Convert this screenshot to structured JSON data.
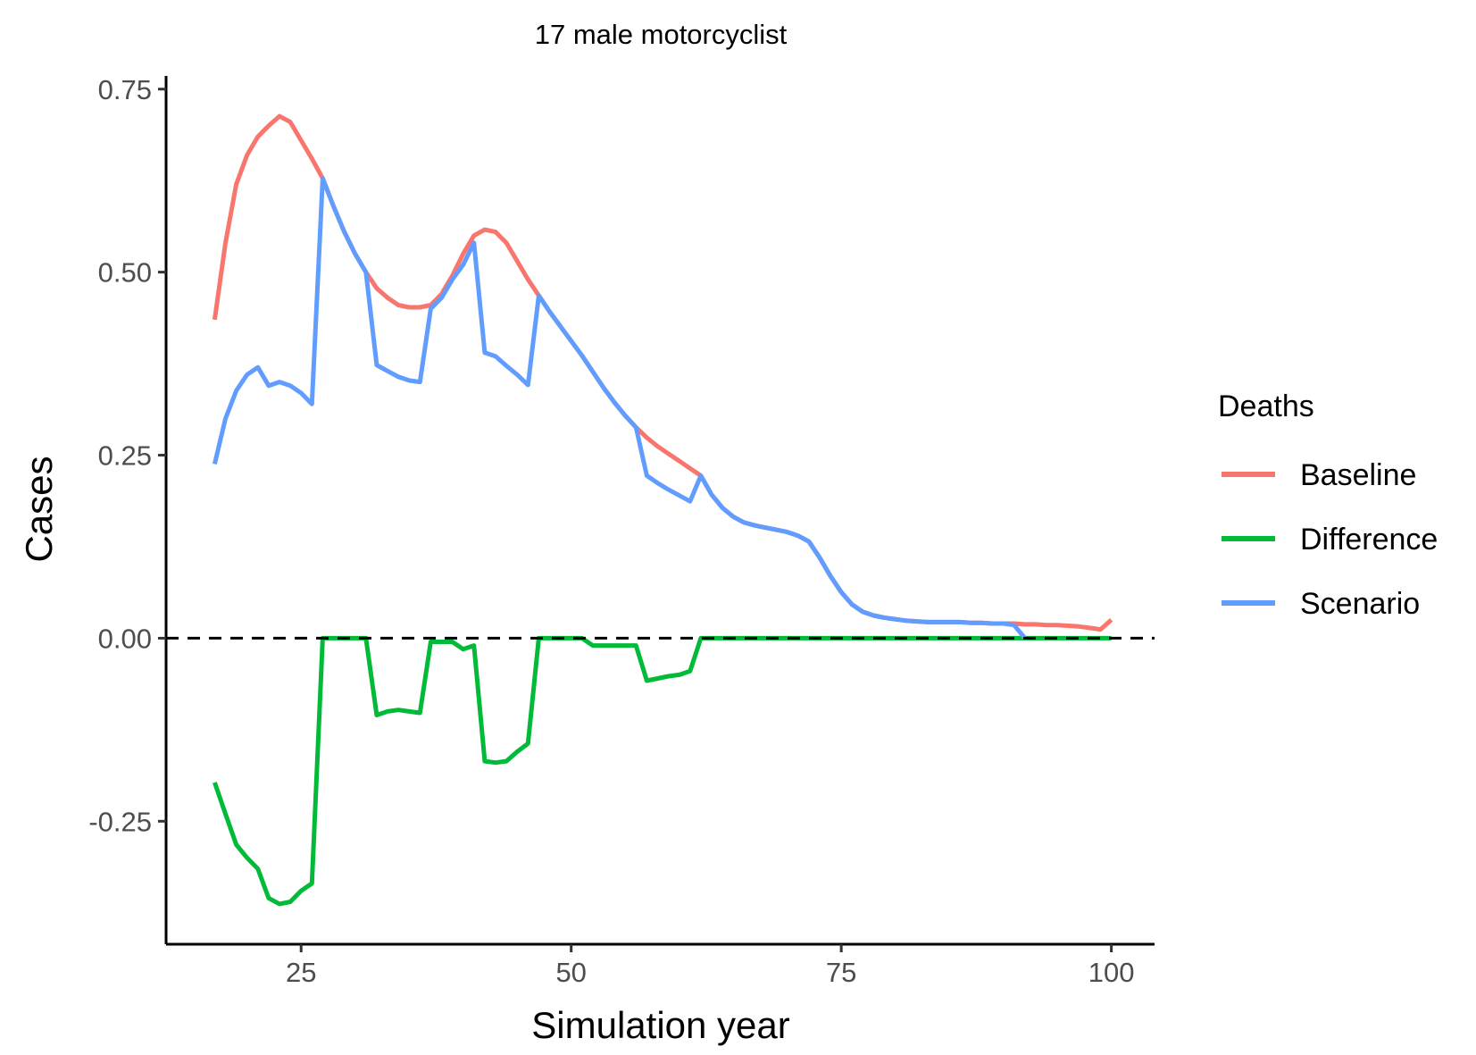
{
  "chart_data": {
    "type": "line",
    "title": "17 male motorcyclist",
    "xlabel": "Simulation year",
    "ylabel": "Cases",
    "xlim": [
      12.5,
      104
    ],
    "ylim": [
      -0.418,
      0.768
    ],
    "x_ticks": [
      25,
      50,
      75,
      100
    ],
    "x_tick_labels": [
      "25",
      "50",
      "75",
      "100"
    ],
    "y_ticks": [
      -0.25,
      0.0,
      0.25,
      0.5,
      0.75
    ],
    "y_tick_labels": [
      "-0.25",
      "0.00",
      "0.25",
      "0.50",
      "0.75"
    ],
    "grid": false,
    "reference_line": {
      "y": 0,
      "style": "dashed",
      "color": "#000000"
    },
    "legend": {
      "title": "Deaths",
      "position": "right"
    },
    "series": [
      {
        "name": "Baseline",
        "color": "#F8766D",
        "x": [
          17,
          18,
          19,
          20,
          21,
          22,
          23,
          24,
          25,
          26,
          27,
          28,
          29,
          30,
          31,
          32,
          33,
          34,
          35,
          36,
          37,
          38,
          39,
          40,
          41,
          42,
          43,
          44,
          45,
          46,
          47,
          48,
          49,
          50,
          51,
          52,
          53,
          54,
          55,
          56,
          57,
          58,
          59,
          60,
          61,
          62,
          63,
          64,
          65,
          66,
          67,
          68,
          69,
          70,
          71,
          72,
          73,
          74,
          75,
          76,
          77,
          78,
          79,
          80,
          81,
          82,
          83,
          84,
          85,
          86,
          87,
          88,
          89,
          90,
          91,
          92,
          93,
          94,
          95,
          96,
          97,
          98,
          99,
          100
        ],
        "values": [
          0.435,
          0.54,
          0.62,
          0.66,
          0.685,
          0.7,
          0.713,
          0.705,
          0.68,
          0.655,
          0.628,
          0.59,
          0.555,
          0.525,
          0.5,
          0.478,
          0.465,
          0.455,
          0.452,
          0.452,
          0.455,
          0.47,
          0.495,
          0.525,
          0.55,
          0.558,
          0.555,
          0.54,
          0.515,
          0.49,
          0.468,
          0.446,
          0.426,
          0.406,
          0.386,
          0.364,
          0.342,
          0.322,
          0.304,
          0.288,
          0.274,
          0.262,
          0.252,
          0.242,
          0.232,
          0.222,
          0.196,
          0.178,
          0.166,
          0.158,
          0.154,
          0.151,
          0.148,
          0.145,
          0.14,
          0.132,
          0.11,
          0.085,
          0.063,
          0.046,
          0.036,
          0.031,
          0.028,
          0.026,
          0.024,
          0.023,
          0.022,
          0.022,
          0.022,
          0.022,
          0.021,
          0.021,
          0.02,
          0.02,
          0.02,
          0.019,
          0.019,
          0.018,
          0.018,
          0.017,
          0.016,
          0.014,
          0.012,
          0.025
        ]
      },
      {
        "name": "Scenario",
        "color": "#619CFF",
        "x": [
          17,
          18,
          19,
          20,
          21,
          22,
          23,
          24,
          25,
          26,
          27,
          28,
          29,
          30,
          31,
          32,
          33,
          34,
          35,
          36,
          37,
          38,
          39,
          40,
          41,
          42,
          43,
          44,
          45,
          46,
          47,
          48,
          49,
          50,
          51,
          52,
          53,
          54,
          55,
          56,
          57,
          58,
          59,
          60,
          61,
          62,
          63,
          64,
          65,
          66,
          67,
          68,
          69,
          70,
          71,
          72,
          73,
          74,
          75,
          76,
          77,
          78,
          79,
          80,
          81,
          82,
          83,
          84,
          85,
          86,
          87,
          88,
          89,
          90,
          91,
          92
        ],
        "values": [
          0.238,
          0.3,
          0.338,
          0.36,
          0.37,
          0.345,
          0.35,
          0.345,
          0.335,
          0.32,
          0.628,
          0.59,
          0.555,
          0.525,
          0.5,
          0.373,
          0.365,
          0.357,
          0.352,
          0.35,
          0.45,
          0.465,
          0.49,
          0.51,
          0.54,
          0.39,
          0.385,
          0.372,
          0.36,
          0.346,
          0.468,
          0.446,
          0.426,
          0.406,
          0.386,
          0.364,
          0.342,
          0.322,
          0.304,
          0.288,
          0.222,
          0.212,
          0.203,
          0.195,
          0.187,
          0.222,
          0.196,
          0.178,
          0.166,
          0.158,
          0.154,
          0.151,
          0.148,
          0.145,
          0.14,
          0.132,
          0.11,
          0.085,
          0.063,
          0.046,
          0.036,
          0.031,
          0.028,
          0.026,
          0.024,
          0.023,
          0.022,
          0.022,
          0.022,
          0.022,
          0.021,
          0.021,
          0.02,
          0.02,
          0.018,
          0.0
        ]
      },
      {
        "name": "Difference",
        "color": "#00BA38",
        "x": [
          17,
          18,
          19,
          20,
          21,
          22,
          23,
          24,
          25,
          26,
          27,
          28,
          29,
          30,
          31,
          32,
          33,
          34,
          35,
          36,
          37,
          38,
          39,
          40,
          41,
          42,
          43,
          44,
          45,
          46,
          47,
          48,
          49,
          50,
          51,
          52,
          53,
          54,
          55,
          56,
          57,
          58,
          59,
          60,
          61,
          62,
          63,
          64,
          65,
          66,
          67,
          68,
          69,
          70,
          71,
          72,
          73,
          74,
          75,
          76,
          77,
          78,
          79,
          80,
          81,
          82,
          83,
          84,
          85,
          86,
          87,
          88,
          89,
          90,
          91,
          92,
          93,
          94,
          95,
          96,
          97,
          98,
          99,
          100
        ],
        "values": [
          -0.197,
          -0.24,
          -0.282,
          -0.3,
          -0.315,
          -0.355,
          -0.363,
          -0.36,
          -0.345,
          -0.335,
          0.0,
          0.0,
          0.0,
          0.0,
          0.0,
          -0.105,
          -0.1,
          -0.098,
          -0.1,
          -0.102,
          -0.005,
          -0.005,
          -0.005,
          -0.015,
          -0.01,
          -0.168,
          -0.17,
          -0.168,
          -0.155,
          -0.144,
          0.0,
          0.0,
          0.0,
          0.0,
          0.0,
          -0.01,
          -0.01,
          -0.01,
          -0.01,
          -0.01,
          -0.058,
          -0.055,
          -0.052,
          -0.05,
          -0.045,
          0.0,
          0.0,
          0.0,
          0.0,
          0.0,
          0.0,
          0.0,
          0.0,
          0.0,
          0.0,
          0.0,
          0.0,
          0.0,
          0.0,
          0.0,
          0.0,
          0.0,
          0.0,
          0.0,
          0.0,
          0.0,
          0.0,
          0.0,
          0.0,
          0.0,
          0.0,
          0.0,
          0.0,
          0.0,
          0.0,
          0.0,
          0.0,
          0.0,
          0.0,
          0.0,
          0.0,
          0.0,
          0.0,
          0.0
        ]
      }
    ],
    "legend_order": [
      "Baseline",
      "Difference",
      "Scenario"
    ]
  }
}
